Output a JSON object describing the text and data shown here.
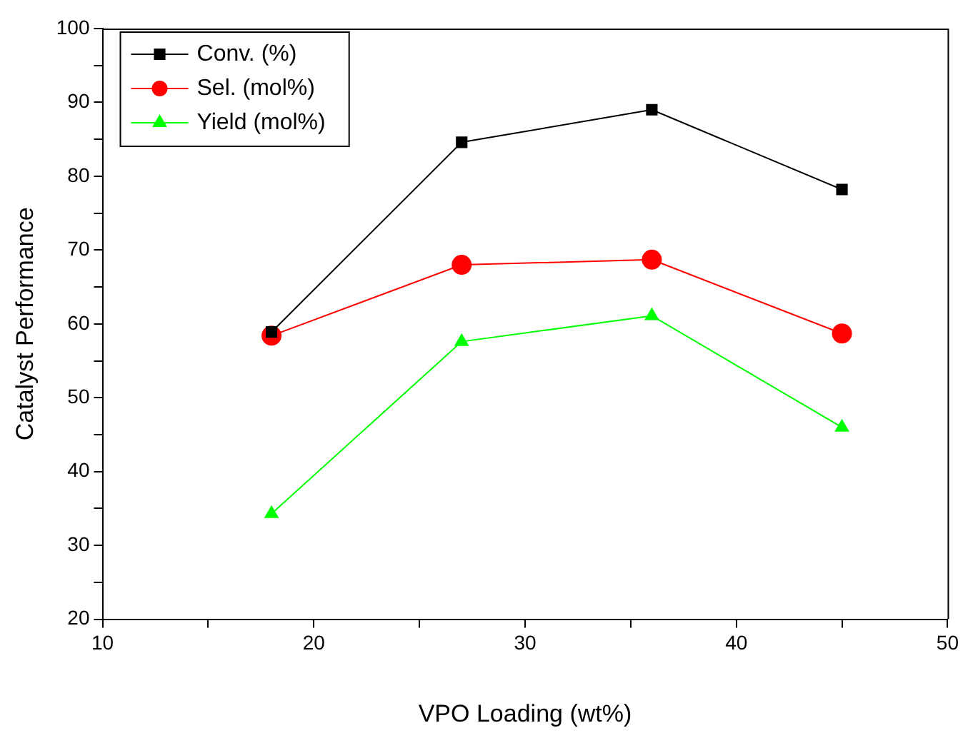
{
  "chart_data": {
    "type": "line",
    "xlabel": "VPO Loading (wt%)",
    "ylabel": "Catalyst Performance",
    "x": [
      18,
      27,
      36,
      45
    ],
    "series": [
      {
        "name": "Conv. (%)",
        "color": "#000000",
        "marker": "square",
        "values": [
          58.9,
          84.6,
          89.0,
          78.2
        ]
      },
      {
        "name": "Sel. (mol%)",
        "color": "#ff0000",
        "marker": "circle",
        "values": [
          58.4,
          68.0,
          68.7,
          58.7
        ]
      },
      {
        "name": "Yield (mol%)",
        "color": "#00ff00",
        "marker": "triangle",
        "values": [
          34.3,
          57.6,
          61.1,
          46.0
        ]
      }
    ],
    "xlim": [
      10,
      50
    ],
    "xticks": [
      10,
      {
        "value": 15,
        "label": null
      },
      20,
      {
        "value": 25,
        "label": null
      },
      30,
      {
        "value": 35,
        "label": null
      },
      40,
      {
        "value": 45,
        "label": null
      },
      50
    ],
    "ylim": [
      20,
      100
    ],
    "yticks": [
      20,
      {
        "value": 25,
        "label": null
      },
      30,
      {
        "value": 35,
        "label": null
      },
      40,
      {
        "value": 45,
        "label": null
      },
      50,
      {
        "value": 55,
        "label": null
      },
      60,
      {
        "value": 65,
        "label": null
      },
      70,
      {
        "value": 75,
        "label": null
      },
      80,
      {
        "value": 85,
        "label": null
      },
      90,
      {
        "value": 95,
        "label": null
      },
      100
    ],
    "grid": false,
    "legend": "top left",
    "line_style": "solid"
  }
}
